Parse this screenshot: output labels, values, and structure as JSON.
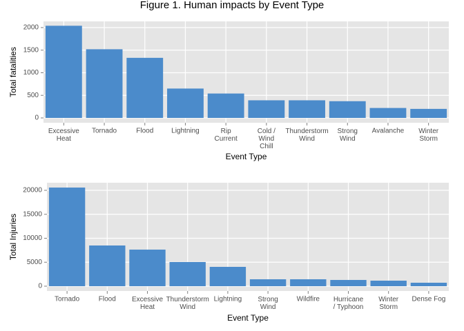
{
  "title": "Figure 1. Human impacts by Event Type",
  "chart_data": [
    {
      "type": "bar",
      "x_label": "Event Type",
      "y_label": "Total fatalities",
      "categories": [
        "Excessive\nHeat",
        "Tornado",
        "Flood",
        "Lightning",
        "Rip\nCurrent",
        "Cold /\nWind\nChill",
        "Thunderstorm\nWind",
        "Strong\nWind",
        "Avalanche",
        "Winter\nStorm"
      ],
      "values": [
        2040,
        1520,
        1330,
        650,
        540,
        390,
        390,
        370,
        220,
        200
      ],
      "color": "#4b8bcb",
      "ylim": [
        -107,
        2137
      ],
      "yticks": [
        0,
        500,
        1000,
        1500,
        2000
      ],
      "grid": true
    },
    {
      "type": "bar",
      "x_label": "Event Type",
      "y_label": "Total Injuries",
      "categories": [
        "Tornado",
        "Flood",
        "Excessive\nHeat",
        "Thunderstorm\nWind",
        "Lightning",
        "Strong\nWind",
        "Wildfire",
        "Hurricane\n/ Typhoon",
        "Winter\nStorm",
        "Dense Fog"
      ],
      "values": [
        20580,
        8490,
        7630,
        5040,
        4030,
        1440,
        1440,
        1300,
        1150,
        720
      ],
      "color": "#4b8bcb",
      "ylim": [
        -1007,
        21583
      ],
      "yticks": [
        0,
        5000,
        10000,
        15000,
        20000
      ],
      "grid": true
    }
  ]
}
